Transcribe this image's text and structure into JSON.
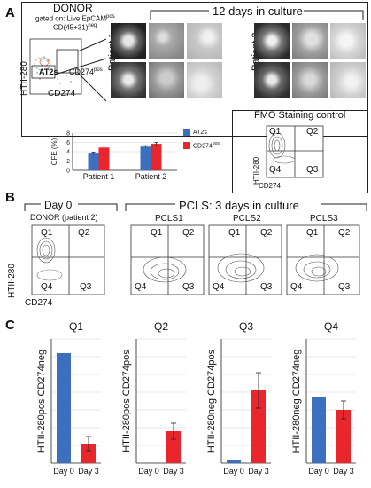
{
  "panels": {
    "A": {
      "letter": "A",
      "donor_title": "DONOR",
      "gating_text": "gated on: Live EpCAM",
      "gating_sup": "pos",
      "gating_line2": "CD(45+31)",
      "gating_line2_sup": "neg",
      "culture_title": "12 days in culture",
      "patient1_label": "Patient 1",
      "patient2_label": "Patient 2",
      "htii_axis": "HTII-280",
      "cd274_axis": "CD274",
      "at2s_label": "AT2s",
      "cd274pos_label": "CD274",
      "cd274pos_sup": "pos",
      "fmo_title": "FMO Staining control",
      "fmo_quadrants": [
        "Q1",
        "Q2",
        "Q4",
        "Q3"
      ],
      "fmo_x_axis": "CD274",
      "fmo_y_axis": "HTII-280"
    },
    "B": {
      "letter": "B",
      "day0_title": "Day 0",
      "donor_patient": "DONOR (patient 2)",
      "pcls_title": "PCLS: 3 days in culture",
      "pcls_names": [
        "PCLS1",
        "PCLS2",
        "PCLS3"
      ],
      "quadrants": [
        "Q1",
        "Q2",
        "Q4",
        "Q3"
      ],
      "y_axis": "HTII-280",
      "x_axis": "CD274"
    },
    "C": {
      "letter": "C"
    }
  },
  "colors": {
    "blue": "#3d6fc0",
    "red": "#e8262b",
    "grid": "#cfcfcf"
  },
  "chart_data": [
    {
      "type": "bar",
      "ylabel": "CFE (%)",
      "categories": [
        "Patient 1",
        "Patient 2"
      ],
      "ylim": [
        0,
        8
      ],
      "yticks": [
        0,
        2,
        4,
        6,
        8
      ],
      "legend": "right",
      "series": [
        {
          "name": "AT2s",
          "values": [
            3.6,
            5.1
          ],
          "errors": [
            0.3,
            0.2
          ]
        },
        {
          "name": "CD274pos",
          "values": [
            4.9,
            5.7
          ],
          "errors": [
            0.3,
            0.3
          ]
        }
      ]
    },
    {
      "type": "bar",
      "title": "Q1",
      "ylabel": "HTII-280pos CD274neg",
      "categories": [
        "Day 0",
        "Day 3"
      ],
      "ylim": [
        0,
        70
      ],
      "values": [
        62,
        11
      ],
      "errors": [
        0,
        4
      ],
      "colors": [
        "#3d6fc0",
        "#e8262b"
      ]
    },
    {
      "type": "bar",
      "title": "Q2",
      "ylabel": "HTII-280pos CD274pos",
      "categories": [
        "Day 0",
        "Day 3"
      ],
      "ylim": [
        0,
        70
      ],
      "values": [
        0,
        18
      ],
      "errors": [
        0,
        4.5
      ],
      "colors": [
        "#3d6fc0",
        "#e8262b"
      ]
    },
    {
      "type": "bar",
      "title": "Q3",
      "ylabel": "HTII-280neg CD274pos",
      "categories": [
        "Day 0",
        "Day 3"
      ],
      "ylim": [
        0,
        70
      ],
      "values": [
        1.5,
        41
      ],
      "errors": [
        0,
        10
      ],
      "colors": [
        "#3d6fc0",
        "#e8262b"
      ]
    },
    {
      "type": "bar",
      "title": "Q4",
      "ylabel": "HTII-280neg CD274neg",
      "categories": [
        "Day 0",
        "Day 3"
      ],
      "ylim": [
        0,
        70
      ],
      "values": [
        37,
        30
      ],
      "errors": [
        0,
        5
      ],
      "colors": [
        "#3d6fc0",
        "#e8262b"
      ]
    }
  ]
}
